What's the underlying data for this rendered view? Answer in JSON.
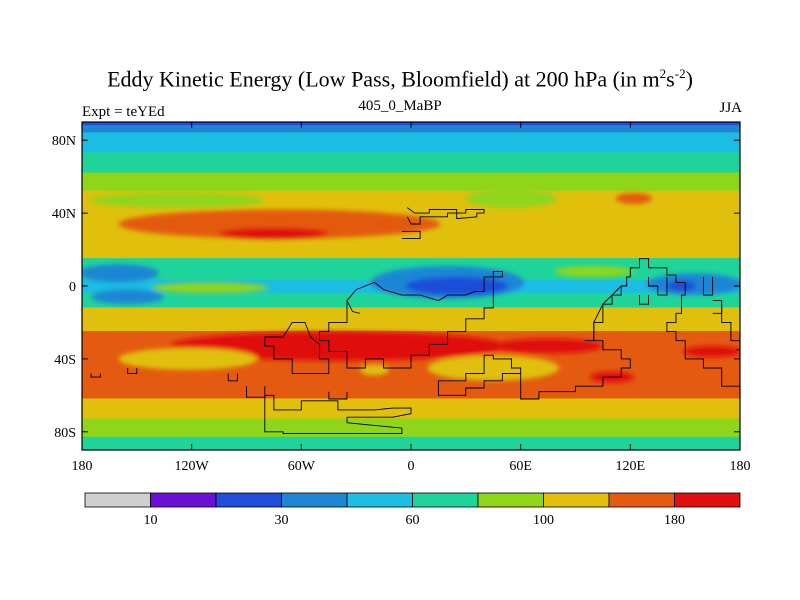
{
  "chart_data": {
    "type": "heatmap",
    "title_main": "Eddy Kinetic Energy (Low Pass, Bloomfield) at 200 hPa (in m",
    "title_sup1": "2",
    "title_mid": "s",
    "title_sup2": "-2",
    "title_end": ")",
    "left_label": "Expt = teYEd",
    "center_label": "405_0_MaBP",
    "right_label": "JJA",
    "x_range": [
      -180,
      180
    ],
    "y_range": [
      -90,
      90
    ],
    "x_ticks": [
      {
        "value": -180,
        "label": "180"
      },
      {
        "value": -120,
        "label": "120W"
      },
      {
        "value": -60,
        "label": "60W"
      },
      {
        "value": 0,
        "label": "0"
      },
      {
        "value": 60,
        "label": "60E"
      },
      {
        "value": 120,
        "label": "120E"
      },
      {
        "value": 180,
        "label": "180"
      }
    ],
    "y_ticks": [
      {
        "value": 80,
        "label": "80N"
      },
      {
        "value": 40,
        "label": "40N"
      },
      {
        "value": 0,
        "label": "0"
      },
      {
        "value": -40,
        "label": "40S"
      },
      {
        "value": -80,
        "label": "80S"
      }
    ],
    "colorbar_colors": [
      "#cfcfcf",
      "#6a0fd6",
      "#1f4ed8",
      "#1f86d6",
      "#1cbde3",
      "#1fd49a",
      "#8fd61a",
      "#e0c00c",
      "#e45a10",
      "#e01010"
    ],
    "colorbar_labels": [
      {
        "boundary": 1,
        "label": "10"
      },
      {
        "boundary": 3,
        "label": "30"
      },
      {
        "boundary": 5,
        "label": "60"
      },
      {
        "boundary": 7,
        "label": "100"
      },
      {
        "boundary": 9,
        "label": "180"
      }
    ],
    "bands": [
      {
        "lat_top": 90,
        "lat_bottom": 88,
        "level": 2
      },
      {
        "lat_top": 88,
        "lat_bottom": 84,
        "level": 3
      },
      {
        "lat_top": 84,
        "lat_bottom": 73,
        "level": 4
      },
      {
        "lat_top": 73,
        "lat_bottom": 62,
        "level": 5
      },
      {
        "lat_top": 62,
        "lat_bottom": 52,
        "level": 6
      },
      {
        "lat_top": 52,
        "lat_bottom": 15,
        "level": 7
      },
      {
        "lat_top": 15,
        "lat_bottom": 3,
        "level": 5
      },
      {
        "lat_top": 3,
        "lat_bottom": -4,
        "level": 4
      },
      {
        "lat_top": -4,
        "lat_bottom": -12,
        "level": 5
      },
      {
        "lat_top": -12,
        "lat_bottom": -25,
        "level": 7
      },
      {
        "lat_top": -25,
        "lat_bottom": -62,
        "level": 8
      },
      {
        "lat_top": -62,
        "lat_bottom": -73,
        "level": 7
      },
      {
        "lat_top": -73,
        "lat_bottom": -83,
        "level": 6
      },
      {
        "lat_top": -83,
        "lat_bottom": -90,
        "level": 5
      }
    ],
    "blobs": [
      {
        "lon": -128,
        "lat": 47,
        "rlon": 48,
        "rlat": 4,
        "level": 6
      },
      {
        "lon": -72,
        "lat": 34,
        "rlon": 88,
        "rlat": 8,
        "level": 8
      },
      {
        "lon": -75,
        "lat": 29,
        "rlon": 30,
        "rlat": 3,
        "level": 9
      },
      {
        "lon": 55,
        "lat": 48,
        "rlon": 25,
        "rlat": 5,
        "level": 6
      },
      {
        "lon": 122,
        "lat": 48,
        "rlon": 10,
        "rlat": 3,
        "level": 8
      },
      {
        "lon": -110,
        "lat": -1,
        "rlon": 32,
        "rlat": 3,
        "level": 6
      },
      {
        "lon": 100,
        "lat": 8,
        "rlon": 22,
        "rlat": 3,
        "level": 6
      },
      {
        "lon": -160,
        "lat": 7,
        "rlon": 22,
        "rlat": 5,
        "level": 3
      },
      {
        "lon": -155,
        "lat": -6,
        "rlon": 20,
        "rlat": 4,
        "level": 3
      },
      {
        "lon": 20,
        "lat": 2,
        "rlon": 42,
        "rlat": 9,
        "level": 3
      },
      {
        "lon": 25,
        "lat": 0,
        "rlon": 28,
        "rlat": 5,
        "level": 2
      },
      {
        "lon": 155,
        "lat": 1,
        "rlon": 26,
        "rlat": 6,
        "level": 3
      },
      {
        "lon": 148,
        "lat": 0,
        "rlon": 8,
        "rlat": 3,
        "level": 2
      },
      {
        "lon": -40,
        "lat": -33,
        "rlon": 92,
        "rlat": 8,
        "level": 9
      },
      {
        "lon": 75,
        "lat": -33,
        "rlon": 30,
        "rlat": 4,
        "level": 9
      },
      {
        "lon": 165,
        "lat": -36,
        "rlon": 16,
        "rlat": 3,
        "level": 9
      },
      {
        "lon": 110,
        "lat": -50,
        "rlon": 12,
        "rlat": 3,
        "level": 9
      },
      {
        "lon": 45,
        "lat": -45,
        "rlon": 36,
        "rlat": 7,
        "level": 7
      },
      {
        "lon": -122,
        "lat": -40,
        "rlon": 38,
        "rlat": 6,
        "level": 7
      },
      {
        "lon": -20,
        "lat": -46,
        "rlon": 8,
        "rlat": 3,
        "level": 7
      }
    ],
    "coastlines": [
      [
        [
          -2,
          43
        ],
        [
          2,
          40
        ],
        [
          10,
          40
        ],
        [
          10,
          42
        ],
        [
          25,
          42
        ],
        [
          25,
          37
        ],
        [
          36,
          38
        ],
        [
          36,
          40
        ],
        [
          40,
          40
        ],
        [
          40,
          42
        ],
        [
          30,
          42
        ],
        [
          30,
          40
        ],
        [
          20,
          40
        ],
        [
          20,
          38
        ],
        [
          5,
          38
        ],
        [
          5,
          34
        ],
        [
          0,
          34
        ],
        [
          -2,
          38
        ]
      ],
      [
        [
          -5,
          30
        ],
        [
          5,
          30
        ],
        [
          5,
          26
        ],
        [
          -5,
          26
        ]
      ],
      [
        [
          -35,
          -8
        ],
        [
          -30,
          -2
        ],
        [
          -25,
          0
        ],
        [
          -20,
          2
        ],
        [
          -15,
          -2
        ],
        [
          -5,
          -5
        ],
        [
          5,
          -5
        ],
        [
          15,
          -8
        ],
        [
          20,
          -5
        ],
        [
          30,
          -5
        ],
        [
          35,
          -3
        ],
        [
          40,
          -3
        ],
        [
          40,
          5
        ],
        [
          50,
          5
        ],
        [
          50,
          8
        ],
        [
          45,
          8
        ],
        [
          45,
          -12
        ],
        [
          40,
          -12
        ],
        [
          40,
          -18
        ],
        [
          30,
          -18
        ],
        [
          30,
          -25
        ],
        [
          20,
          -25
        ],
        [
          20,
          -32
        ],
        [
          10,
          -32
        ],
        [
          10,
          -38
        ],
        [
          0,
          -38
        ],
        [
          0,
          -45
        ],
        [
          -10,
          -45
        ],
        [
          -15,
          -45
        ],
        [
          -15,
          -40
        ],
        [
          -25,
          -40
        ],
        [
          -25,
          -45
        ],
        [
          -35,
          -45
        ],
        [
          -35,
          -36
        ],
        [
          -45,
          -36
        ],
        [
          -45,
          -30
        ],
        [
          -50,
          -30
        ],
        [
          -50,
          -25
        ],
        [
          -45,
          -25
        ],
        [
          -45,
          -20
        ],
        [
          -35,
          -20
        ],
        [
          -35,
          -8
        ]
      ],
      [
        [
          -35,
          -8
        ],
        [
          -32,
          -14
        ],
        [
          -28,
          -15
        ]
      ],
      [
        [
          -55,
          -28
        ],
        [
          -50,
          -32
        ],
        [
          -50,
          -40
        ],
        [
          -45,
          -40
        ],
        [
          -45,
          -48
        ],
        [
          -65,
          -48
        ],
        [
          -65,
          -40
        ],
        [
          -75,
          -40
        ],
        [
          -75,
          -33
        ],
        [
          -80,
          -33
        ],
        [
          -80,
          -28
        ],
        [
          -70,
          -28
        ],
        [
          -65,
          -20
        ],
        [
          -58,
          -20
        ],
        [
          -55,
          -28
        ]
      ],
      [
        [
          -100,
          -48
        ],
        [
          -100,
          -52
        ],
        [
          -95,
          -52
        ],
        [
          -95,
          -48
        ]
      ],
      [
        [
          -80,
          -60
        ],
        [
          -80,
          -80
        ],
        [
          -70,
          -80
        ],
        [
          -70,
          -81
        ],
        [
          -5,
          -81
        ],
        [
          -5,
          -78
        ],
        [
          -35,
          -75
        ],
        [
          -35,
          -72
        ],
        [
          -10,
          -72
        ],
        [
          0,
          -70
        ],
        [
          0,
          -67
        ],
        [
          -10,
          -67
        ],
        [
          -20,
          -68
        ],
        [
          -40,
          -68
        ],
        [
          -40,
          -63
        ],
        [
          -60,
          -63
        ],
        [
          -60,
          -68
        ],
        [
          -75,
          -68
        ],
        [
          -75,
          -60
        ],
        [
          -80,
          -60
        ]
      ],
      [
        [
          -90,
          -55
        ],
        [
          -90,
          -61
        ],
        [
          -80,
          -61
        ],
        [
          -80,
          -55
        ]
      ],
      [
        [
          -45,
          -58
        ],
        [
          -45,
          -62
        ],
        [
          -35,
          -62
        ],
        [
          -35,
          -58
        ]
      ],
      [
        [
          -155,
          -45
        ],
        [
          -155,
          -48
        ],
        [
          -150,
          -48
        ],
        [
          -150,
          -45
        ]
      ],
      [
        [
          -175,
          -48
        ],
        [
          -175,
          -50
        ],
        [
          -170,
          -50
        ],
        [
          -170,
          -48
        ]
      ],
      [
        [
          15,
          -52
        ],
        [
          15,
          -60
        ],
        [
          30,
          -60
        ],
        [
          30,
          -56
        ],
        [
          40,
          -56
        ],
        [
          40,
          -52
        ],
        [
          50,
          -52
        ],
        [
          50,
          -48
        ],
        [
          60,
          -48
        ],
        [
          60,
          -45
        ],
        [
          55,
          -45
        ],
        [
          55,
          -40
        ],
        [
          45,
          -40
        ],
        [
          45,
          -38
        ],
        [
          40,
          -38
        ],
        [
          40,
          -48
        ],
        [
          30,
          -48
        ],
        [
          30,
          -52
        ],
        [
          15,
          -52
        ]
      ],
      [
        [
          60,
          -48
        ],
        [
          60,
          -62
        ],
        [
          70,
          -62
        ],
        [
          70,
          -58
        ],
        [
          90,
          -58
        ],
        [
          90,
          -55
        ],
        [
          105,
          -55
        ],
        [
          105,
          -50
        ],
        [
          115,
          -50
        ],
        [
          115,
          -45
        ],
        [
          120,
          -45
        ],
        [
          120,
          -40
        ],
        [
          115,
          -40
        ],
        [
          115,
          -35
        ],
        [
          105,
          -35
        ],
        [
          105,
          -30
        ],
        [
          100,
          -30
        ],
        [
          100,
          -20
        ],
        [
          105,
          -20
        ],
        [
          105,
          -10
        ],
        [
          110,
          -10
        ],
        [
          110,
          -5
        ],
        [
          115,
          -5
        ],
        [
          115,
          0
        ],
        [
          118,
          0
        ],
        [
          118,
          5
        ],
        [
          120,
          5
        ],
        [
          120,
          10
        ],
        [
          125,
          10
        ],
        [
          125,
          15
        ],
        [
          130,
          15
        ],
        [
          130,
          10
        ],
        [
          140,
          10
        ],
        [
          140,
          6
        ],
        [
          145,
          6
        ],
        [
          145,
          2
        ],
        [
          150,
          2
        ],
        [
          150,
          -5
        ],
        [
          148,
          -5
        ],
        [
          148,
          -15
        ],
        [
          145,
          -15
        ],
        [
          145,
          -20
        ],
        [
          140,
          -20
        ],
        [
          140,
          -25
        ],
        [
          145,
          -25
        ],
        [
          145,
          -30
        ],
        [
          150,
          -30
        ],
        [
          150,
          -40
        ],
        [
          160,
          -40
        ],
        [
          160,
          -45
        ],
        [
          170,
          -45
        ],
        [
          170,
          -55
        ],
        [
          180,
          -55
        ]
      ],
      [
        [
          118,
          0
        ],
        [
          115,
          0
        ],
        [
          110,
          -5
        ],
        [
          105,
          -10
        ],
        [
          100,
          -20
        ],
        [
          100,
          -30
        ],
        [
          95,
          -30
        ]
      ],
      [
        [
          125,
          -5
        ],
        [
          125,
          -10
        ],
        [
          130,
          -10
        ],
        [
          130,
          -5
        ]
      ],
      [
        [
          160,
          5
        ],
        [
          160,
          -5
        ],
        [
          165,
          -5
        ],
        [
          165,
          5
        ]
      ],
      [
        [
          165,
          -8
        ],
        [
          170,
          -8
        ],
        [
          170,
          -15
        ],
        [
          165,
          -15
        ]
      ],
      [
        [
          130,
          5
        ],
        [
          130,
          0
        ],
        [
          135,
          0
        ],
        [
          135,
          -5
        ],
        [
          140,
          -5
        ],
        [
          140,
          5
        ]
      ],
      [
        [
          170,
          -10
        ],
        [
          170,
          -20
        ],
        [
          175,
          -20
        ],
        [
          175,
          -30
        ],
        [
          180,
          -30
        ]
      ],
      [
        [
          178,
          -35
        ],
        [
          180,
          -35
        ]
      ]
    ]
  }
}
